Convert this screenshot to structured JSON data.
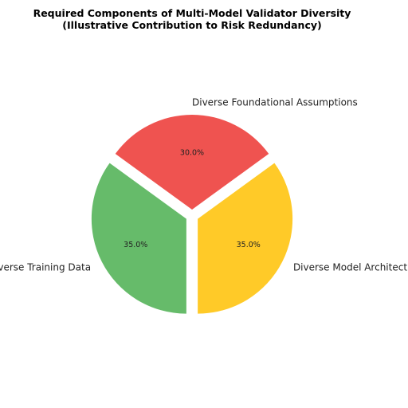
{
  "chart_data": {
    "type": "pie",
    "title": "Required Components of Multi-Model Validator Diversity",
    "subtitle": "(Illustrative Contribution to Risk Redundancy)",
    "slices": [
      {
        "label": "Diverse Foundational Assumptions",
        "value": 30.0,
        "pct_label": "30.0%",
        "color": "#ef5350"
      },
      {
        "label": "Diverse Training Data",
        "value": 35.0,
        "pct_label": "35.0%",
        "color": "#66bb6a"
      },
      {
        "label": "Diverse Model Architecture",
        "value": 35.0,
        "pct_label": "35.0%",
        "color": "#ffca28"
      }
    ],
    "exploded": true,
    "legend": "none"
  }
}
